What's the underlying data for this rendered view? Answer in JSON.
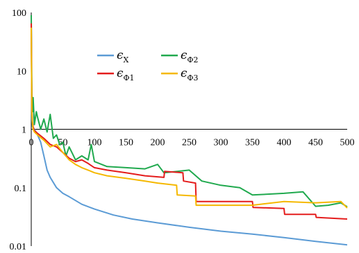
{
  "chart_data": {
    "type": "line",
    "xlim": [
      0,
      500
    ],
    "ylim": [
      0.01,
      100
    ],
    "yscale": "log",
    "x_axis_crosses_y_at": 1,
    "x_ticks": [
      0,
      50,
      100,
      150,
      200,
      250,
      300,
      350,
      400,
      450,
      500
    ],
    "y_ticks": [
      100,
      10,
      1,
      0.1,
      0.01
    ],
    "y_tick_labels": [
      "100",
      "10",
      "1",
      "0.1",
      "0.01"
    ],
    "grid": false,
    "legend_position": "top-center",
    "series": [
      {
        "name": "ϵX",
        "name_main": "ϵ",
        "name_sub": "X",
        "color": "#5B9BD5",
        "x": [
          0,
          1,
          2,
          5,
          10,
          15,
          20,
          25,
          30,
          40,
          50,
          60,
          80,
          100,
          130,
          160,
          200,
          250,
          300,
          350,
          400,
          450,
          500
        ],
        "y": [
          60,
          1.5,
          1.1,
          1.0,
          0.8,
          0.6,
          0.35,
          0.2,
          0.15,
          0.1,
          0.08,
          0.07,
          0.052,
          0.043,
          0.034,
          0.029,
          0.025,
          0.021,
          0.018,
          0.016,
          0.014,
          0.012,
          0.0105
        ]
      },
      {
        "name": "ϵΦ1",
        "name_main": "ϵ",
        "name_sub": "Φ1",
        "color": "#E41C1C",
        "x": [
          0,
          1,
          2,
          3,
          5,
          10,
          20,
          30,
          40,
          50,
          60,
          70,
          80,
          90,
          100,
          120,
          150,
          180,
          210,
          211,
          240,
          241,
          260,
          261,
          300,
          350,
          351,
          400,
          401,
          450,
          451,
          500
        ],
        "y": [
          65,
          2.0,
          1.3,
          1.1,
          0.95,
          0.85,
          0.7,
          0.55,
          0.5,
          0.4,
          0.32,
          0.28,
          0.3,
          0.26,
          0.22,
          0.2,
          0.18,
          0.16,
          0.15,
          0.19,
          0.18,
          0.13,
          0.12,
          0.058,
          0.058,
          0.058,
          0.046,
          0.044,
          0.035,
          0.035,
          0.031,
          0.029
        ]
      },
      {
        "name": "ϵΦ2",
        "name_main": "ϵ",
        "name_sub": "Φ2",
        "color": "#20A94E",
        "x": [
          0,
          1,
          2,
          3,
          5,
          8,
          10,
          15,
          20,
          25,
          30,
          35,
          40,
          45,
          50,
          55,
          60,
          70,
          80,
          90,
          95,
          100,
          120,
          150,
          180,
          200,
          210,
          250,
          270,
          300,
          330,
          350,
          400,
          430,
          450,
          470,
          490,
          500
        ],
        "y": [
          90,
          4.0,
          2.0,
          3.5,
          1.2,
          2.0,
          1.6,
          1.0,
          1.5,
          0.9,
          1.8,
          0.7,
          0.8,
          0.55,
          0.6,
          0.35,
          0.5,
          0.3,
          0.35,
          0.3,
          0.55,
          0.28,
          0.23,
          0.22,
          0.21,
          0.25,
          0.18,
          0.2,
          0.13,
          0.11,
          0.1,
          0.075,
          0.08,
          0.085,
          0.048,
          0.05,
          0.055,
          0.047
        ]
      },
      {
        "name": "ϵΦ3",
        "name_main": "ϵ",
        "name_sub": "Φ3",
        "color": "#F5B800",
        "x": [
          0,
          1,
          2,
          3,
          5,
          10,
          20,
          30,
          40,
          50,
          60,
          70,
          80,
          90,
          100,
          120,
          150,
          180,
          200,
          230,
          231,
          260,
          261,
          300,
          350,
          400,
          450,
          490,
          500
        ],
        "y": [
          55,
          1.8,
          1.2,
          1.0,
          0.9,
          0.8,
          0.65,
          0.5,
          0.55,
          0.4,
          0.3,
          0.25,
          0.22,
          0.2,
          0.18,
          0.16,
          0.145,
          0.13,
          0.12,
          0.11,
          0.075,
          0.072,
          0.05,
          0.05,
          0.05,
          0.058,
          0.055,
          0.058,
          0.045
        ]
      }
    ]
  }
}
